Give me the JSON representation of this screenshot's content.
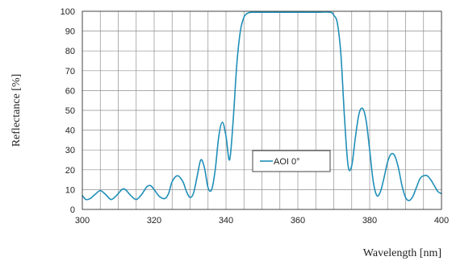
{
  "chart_data": {
    "type": "line",
    "title": "",
    "xlabel": "Wavelength [nm]",
    "ylabel": "Reflectance [%]",
    "xlim": [
      300,
      400
    ],
    "ylim": [
      0,
      100
    ],
    "x_ticks": [
      300,
      320,
      340,
      360,
      380,
      400
    ],
    "x_tick_labels": [
      "300",
      "320",
      "340",
      "360",
      "380",
      "400"
    ],
    "y_ticks": [
      0,
      10,
      20,
      30,
      40,
      50,
      60,
      70,
      80,
      90,
      100
    ],
    "y_tick_labels": [
      "0",
      "10",
      "20",
      "30",
      "40",
      "50",
      "60",
      "70",
      "80",
      "90",
      "100"
    ],
    "grid": true,
    "legend_position": "center-right",
    "series": [
      {
        "name": "AOI 0°",
        "color": "#1f8fb8",
        "x": [
          300,
          301,
          302.2,
          303.5,
          305,
          306.5,
          308,
          309.5,
          311,
          312,
          313.5,
          315,
          316.5,
          318,
          319,
          320,
          321.5,
          323,
          324,
          325,
          326.5,
          328,
          329,
          330,
          331,
          332,
          333,
          334,
          335,
          336,
          337,
          338,
          339,
          340,
          341,
          342,
          343,
          344,
          345,
          346,
          347,
          348,
          350,
          355,
          360,
          365,
          369,
          370,
          371,
          372,
          373,
          374,
          375,
          376,
          377,
          378,
          379,
          380,
          381,
          382,
          383,
          384,
          385,
          386,
          387,
          388,
          389,
          390,
          391,
          392,
          393,
          394,
          395,
          396,
          397,
          398,
          399,
          400
        ],
        "values": [
          7,
          5,
          5.5,
          7.5,
          9.5,
          7.5,
          5,
          7,
          10,
          10,
          7,
          5,
          7.5,
          11.5,
          12,
          10,
          6.5,
          5.5,
          8,
          14,
          17,
          14,
          9,
          6,
          8.5,
          17,
          25,
          21,
          11,
          10,
          20,
          37,
          44,
          37,
          25,
          45,
          73,
          90,
          97,
          99,
          99.5,
          99.5,
          99.5,
          99.5,
          99.5,
          99.5,
          99.5,
          98,
          94,
          78,
          46,
          22,
          22,
          36,
          48,
          51,
          45,
          30,
          14,
          7,
          9,
          16,
          24,
          28,
          27,
          21,
          12,
          6,
          4.5,
          6.5,
          11,
          15.5,
          17,
          17,
          15,
          12,
          9,
          8
        ]
      }
    ]
  }
}
